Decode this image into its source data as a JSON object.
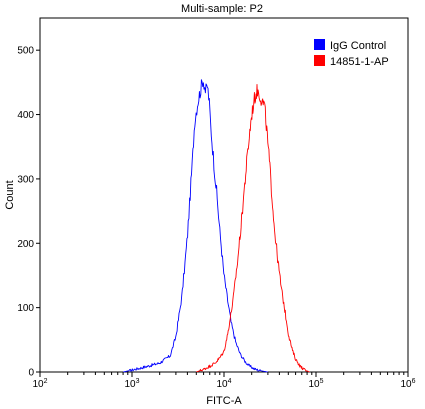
{
  "chart_data": {
    "type": "line",
    "title": "Multi-sample: P2",
    "xlabel": "FITC-A",
    "ylabel": "Count",
    "x_scale": "log",
    "xlim": [
      100,
      1000000
    ],
    "ylim": [
      0,
      550
    ],
    "x_ticks": [
      {
        "value": 100,
        "base": "10",
        "exp": "2"
      },
      {
        "value": 1000,
        "base": "10",
        "exp": "3"
      },
      {
        "value": 10000,
        "base": "10",
        "exp": "4"
      },
      {
        "value": 100000,
        "base": "10",
        "exp": "5"
      },
      {
        "value": 1000000,
        "base": "10",
        "exp": "6"
      }
    ],
    "y_ticks": [
      0,
      100,
      200,
      300,
      400,
      500
    ],
    "legend_position": "top-right",
    "series": [
      {
        "name": "IgG Control",
        "color": "#0000ff",
        "x": [
          800,
          1000,
          1400,
          2000,
          2600,
          3000,
          3500,
          4000,
          4500,
          4800,
          5200,
          5600,
          5900,
          6100,
          6300,
          6600,
          6900,
          7200,
          7700,
          8300,
          9000,
          10000,
          11000,
          12000,
          13500,
          15000,
          17000,
          19000,
          22000,
          25000,
          30000
        ],
        "y": [
          0,
          3,
          8,
          14,
          25,
          55,
          120,
          210,
          320,
          390,
          420,
          440,
          455,
          448,
          435,
          445,
          420,
          380,
          330,
          280,
          220,
          150,
          110,
          75,
          45,
          28,
          16,
          9,
          4,
          2,
          0
        ]
      },
      {
        "name": "14851-1-AP",
        "color": "#ff0000",
        "x": [
          5000,
          6000,
          7000,
          8000,
          9000,
          10000,
          11000,
          12500,
          14000,
          15500,
          17000,
          18500,
          20000,
          21500,
          23000,
          24500,
          26000,
          27500,
          29000,
          31000,
          33000,
          35000,
          38000,
          42000,
          46000,
          50000,
          55000,
          60000,
          68000,
          76000,
          85000
        ],
        "y": [
          0,
          4,
          9,
          14,
          22,
          32,
          60,
          110,
          170,
          235,
          300,
          355,
          400,
          425,
          438,
          430,
          420,
          415,
          380,
          330,
          280,
          230,
          180,
          130,
          95,
          60,
          35,
          20,
          8,
          3,
          0
        ]
      }
    ]
  }
}
